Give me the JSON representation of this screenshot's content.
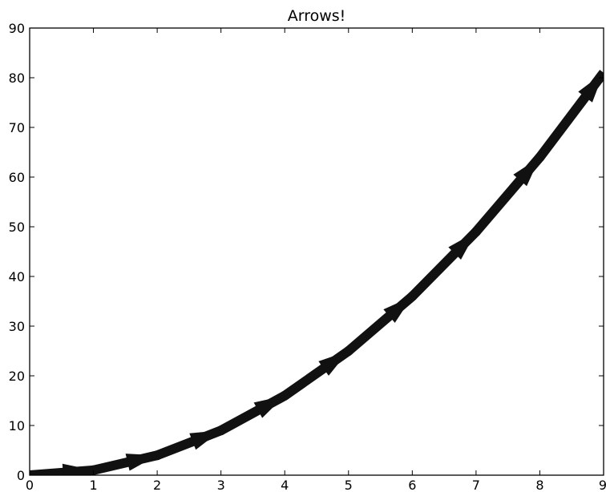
{
  "chart_data": {
    "type": "line",
    "title": "Arrows!",
    "xlabel": "",
    "ylabel": "",
    "x": [
      0,
      1,
      2,
      3,
      4,
      5,
      6,
      7,
      8,
      9
    ],
    "series": [
      {
        "values": [
          0,
          1,
          4,
          9,
          16,
          25,
          36,
          49,
          64,
          81
        ],
        "color": "#111111",
        "marker": "arrow"
      }
    ],
    "xlim": [
      0,
      9
    ],
    "ylim": [
      0,
      90
    ],
    "xticks": [
      "0",
      "1",
      "2",
      "3",
      "4",
      "5",
      "6",
      "7",
      "8",
      "9"
    ],
    "yticks": [
      "0",
      "10",
      "20",
      "30",
      "40",
      "50",
      "60",
      "70",
      "80",
      "90"
    ],
    "grid": false,
    "legend": "none"
  }
}
